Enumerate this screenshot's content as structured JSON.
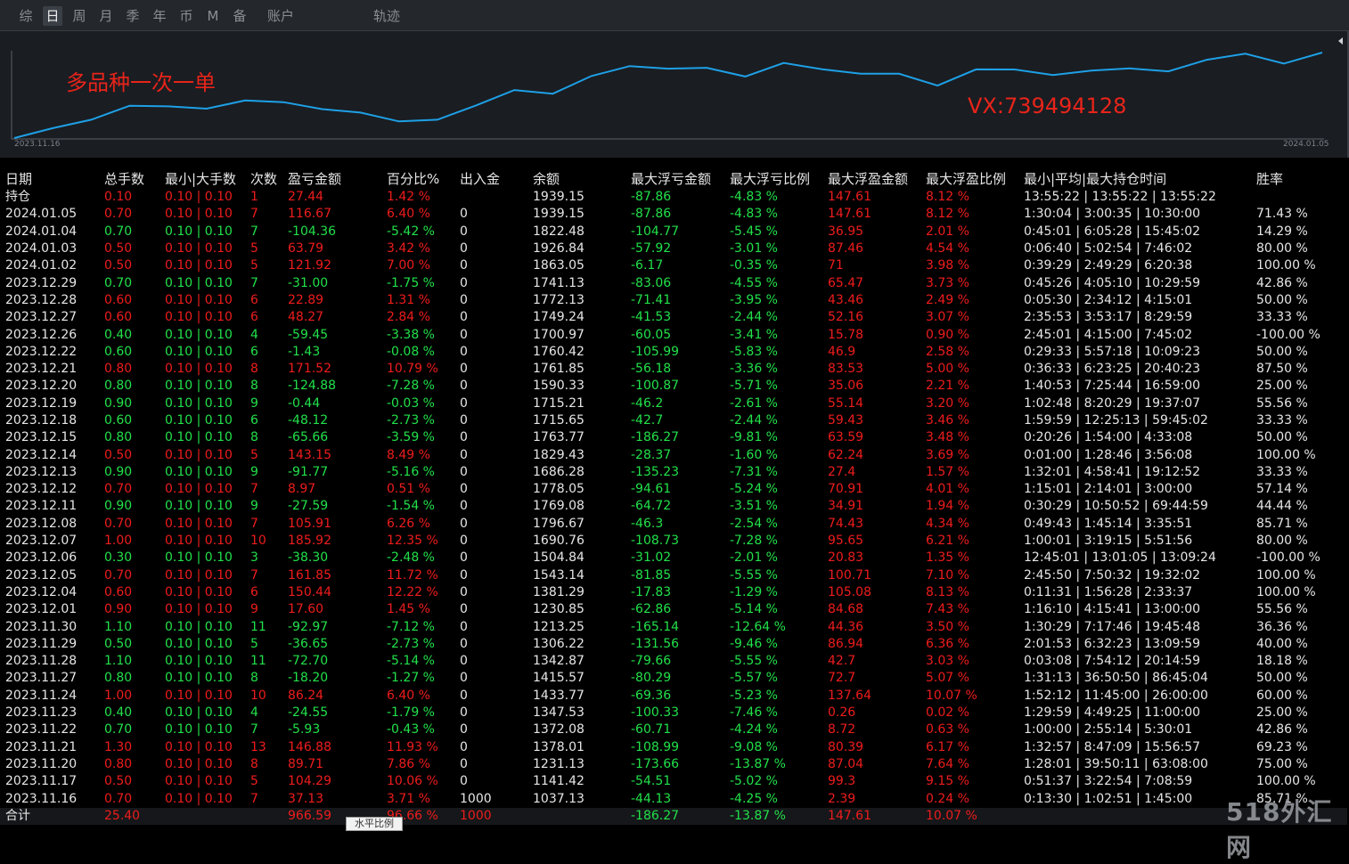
{
  "tabs": [
    {
      "label": "综",
      "active": false
    },
    {
      "label": "日",
      "active": true
    },
    {
      "label": "周",
      "active": false
    },
    {
      "label": "月",
      "active": false
    },
    {
      "label": "季",
      "active": false
    },
    {
      "label": "年",
      "active": false
    },
    {
      "label": "币",
      "active": false
    },
    {
      "label": "M",
      "active": false
    },
    {
      "label": "备",
      "active": false
    },
    {
      "label": "账户",
      "active": false
    },
    {
      "label": "轨迹",
      "active": false
    }
  ],
  "chart": {
    "title_overlay": "多品种一次一单",
    "note_overlay": "VX:739494128",
    "start_date": "2023.11.16",
    "end_date": "2024.01.05",
    "line_color": "#1ea0e6"
  },
  "chart_data": {
    "type": "line",
    "series_values": [
      1037.13,
      1141.42,
      1231.13,
      1378.01,
      1372.08,
      1347.53,
      1433.77,
      1415.57,
      1342.87,
      1306.22,
      1213.25,
      1230.85,
      1381.29,
      1543.14,
      1504.84,
      1690.76,
      1796.67,
      1769.08,
      1778.05,
      1686.28,
      1829.43,
      1763.77,
      1715.65,
      1715.21,
      1590.33,
      1761.85,
      1760.42,
      1700.97,
      1749.24,
      1772.13,
      1741.13,
      1863.05,
      1926.84,
      1822.48,
      1939.15
    ],
    "x_start": "2023.11.16",
    "x_end": "2024.01.05",
    "color": "#1ea0e6"
  },
  "table": {
    "headers": [
      "日期",
      "总手数",
      "最小|大手数",
      "次数",
      "盈亏金额",
      "百分比%",
      "出入金",
      "余额",
      "最大浮亏金额",
      "最大浮亏比例",
      "最大浮盈金额",
      "最大浮盈比例",
      "最小|平均|最大持仓时间",
      "胜率"
    ],
    "rows": [
      {
        "c": [
          "持仓",
          "0.10",
          "0.10 | 0.10",
          "1",
          "27.44",
          "1.42 %",
          "",
          "1939.15",
          "-87.86",
          "-4.83 %",
          "147.61",
          "8.12 %",
          "13:55:22 | 13:55:22 | 13:55:22",
          ""
        ],
        "s": "r"
      },
      {
        "c": [
          "2024.01.05",
          "0.70",
          "0.10 | 0.10",
          "7",
          "116.67",
          "6.40 %",
          "0",
          "1939.15",
          "-87.86",
          "-4.83 %",
          "147.61",
          "8.12 %",
          "1:30:04 | 3:00:35 | 10:30:00",
          "71.43 %"
        ],
        "s": "r"
      },
      {
        "c": [
          "2024.01.04",
          "0.70",
          "0.10 | 0.10",
          "7",
          "-104.36",
          "-5.42 %",
          "0",
          "1822.48",
          "-104.77",
          "-5.45 %",
          "36.95",
          "2.01 %",
          "0:45:01 | 6:05:28 | 15:45:02",
          "14.29 %"
        ],
        "s": "g"
      },
      {
        "c": [
          "2024.01.03",
          "0.50",
          "0.10 | 0.10",
          "5",
          "63.79",
          "3.42 %",
          "0",
          "1926.84",
          "-57.92",
          "-3.01 %",
          "87.46",
          "4.54 %",
          "0:06:40 | 5:02:54 | 7:46:02",
          "80.00 %"
        ],
        "s": "r"
      },
      {
        "c": [
          "2024.01.02",
          "0.50",
          "0.10 | 0.10",
          "5",
          "121.92",
          "7.00 %",
          "0",
          "1863.05",
          "-6.17",
          "-0.35 %",
          "71",
          "3.98 %",
          "0:39:29 | 2:49:29 | 6:20:38",
          "100.00 %"
        ],
        "s": "r"
      },
      {
        "c": [
          "2023.12.29",
          "0.70",
          "0.10 | 0.10",
          "7",
          "-31.00",
          "-1.75 %",
          "0",
          "1741.13",
          "-83.06",
          "-4.55 %",
          "65.47",
          "3.73 %",
          "0:45:26 | 4:05:10 | 10:29:59",
          "42.86 %"
        ],
        "s": "g"
      },
      {
        "c": [
          "2023.12.28",
          "0.60",
          "0.10 | 0.10",
          "6",
          "22.89",
          "1.31 %",
          "0",
          "1772.13",
          "-71.41",
          "-3.95 %",
          "43.46",
          "2.49 %",
          "0:05:30 | 2:34:12 | 4:15:01",
          "50.00 %"
        ],
        "s": "r"
      },
      {
        "c": [
          "2023.12.27",
          "0.60",
          "0.10 | 0.10",
          "6",
          "48.27",
          "2.84 %",
          "0",
          "1749.24",
          "-41.53",
          "-2.44 %",
          "52.16",
          "3.07 %",
          "2:35:53 | 3:53:17 | 8:29:59",
          "33.33 %"
        ],
        "s": "r"
      },
      {
        "c": [
          "2023.12.26",
          "0.40",
          "0.10 | 0.10",
          "4",
          "-59.45",
          "-3.38 %",
          "0",
          "1700.97",
          "-60.05",
          "-3.41 %",
          "15.78",
          "0.90 %",
          "2:45:01 | 4:15:00 | 7:45:02",
          "-100.00 %"
        ],
        "s": "g"
      },
      {
        "c": [
          "2023.12.22",
          "0.60",
          "0.10 | 0.10",
          "6",
          "-1.43",
          "-0.08 %",
          "0",
          "1760.42",
          "-105.99",
          "-5.83 %",
          "46.9",
          "2.58 %",
          "0:29:33 | 5:57:18 | 10:09:23",
          "50.00 %"
        ],
        "s": "g"
      },
      {
        "c": [
          "2023.12.21",
          "0.80",
          "0.10 | 0.10",
          "8",
          "171.52",
          "10.79 %",
          "0",
          "1761.85",
          "-56.18",
          "-3.36 %",
          "83.53",
          "5.00 %",
          "0:36:33 | 6:23:25 | 20:40:23",
          "87.50 %"
        ],
        "s": "r"
      },
      {
        "c": [
          "2023.12.20",
          "0.80",
          "0.10 | 0.10",
          "8",
          "-124.88",
          "-7.28 %",
          "0",
          "1590.33",
          "-100.87",
          "-5.71 %",
          "35.06",
          "2.21 %",
          "1:40:53 | 7:25:44 | 16:59:00",
          "25.00 %"
        ],
        "s": "g"
      },
      {
        "c": [
          "2023.12.19",
          "0.90",
          "0.10 | 0.10",
          "9",
          "-0.44",
          "-0.03 %",
          "0",
          "1715.21",
          "-46.2",
          "-2.61 %",
          "55.14",
          "3.20 %",
          "1:02:48 | 8:20:29 | 19:37:07",
          "55.56 %"
        ],
        "s": "g"
      },
      {
        "c": [
          "2023.12.18",
          "0.60",
          "0.10 | 0.10",
          "6",
          "-48.12",
          "-2.73 %",
          "0",
          "1715.65",
          "-42.7",
          "-2.44 %",
          "59.43",
          "3.46 %",
          "1:59:59 | 12:25:13 | 59:45:02",
          "33.33 %"
        ],
        "s": "g"
      },
      {
        "c": [
          "2023.12.15",
          "0.80",
          "0.10 | 0.10",
          "8",
          "-65.66",
          "-3.59 %",
          "0",
          "1763.77",
          "-186.27",
          "-9.81 %",
          "63.59",
          "3.48 %",
          "0:20:26 | 1:54:00 | 4:33:08",
          "50.00 %"
        ],
        "s": "g"
      },
      {
        "c": [
          "2023.12.14",
          "0.50",
          "0.10 | 0.10",
          "5",
          "143.15",
          "8.49 %",
          "0",
          "1829.43",
          "-28.37",
          "-1.60 %",
          "62.24",
          "3.69 %",
          "0:01:00 | 1:28:46 | 3:56:08",
          "100.00 %"
        ],
        "s": "r"
      },
      {
        "c": [
          "2023.12.13",
          "0.90",
          "0.10 | 0.10",
          "9",
          "-91.77",
          "-5.16 %",
          "0",
          "1686.28",
          "-135.23",
          "-7.31 %",
          "27.4",
          "1.57 %",
          "1:32:01 | 4:58:41 | 19:12:52",
          "33.33 %"
        ],
        "s": "g"
      },
      {
        "c": [
          "2023.12.12",
          "0.70",
          "0.10 | 0.10",
          "7",
          "8.97",
          "0.51 %",
          "0",
          "1778.05",
          "-94.61",
          "-5.24 %",
          "70.91",
          "4.01 %",
          "1:15:01 | 2:14:01 | 3:00:00",
          "57.14 %"
        ],
        "s": "r"
      },
      {
        "c": [
          "2023.12.11",
          "0.90",
          "0.10 | 0.10",
          "9",
          "-27.59",
          "-1.54 %",
          "0",
          "1769.08",
          "-64.72",
          "-3.51 %",
          "34.91",
          "1.94 %",
          "0:30:29 | 10:50:52 | 69:44:59",
          "44.44 %"
        ],
        "s": "g"
      },
      {
        "c": [
          "2023.12.08",
          "0.70",
          "0.10 | 0.10",
          "7",
          "105.91",
          "6.26 %",
          "0",
          "1796.67",
          "-46.3",
          "-2.54 %",
          "74.43",
          "4.34 %",
          "0:49:43 | 1:45:14 | 3:35:51",
          "85.71 %"
        ],
        "s": "r"
      },
      {
        "c": [
          "2023.12.07",
          "1.00",
          "0.10 | 0.10",
          "10",
          "185.92",
          "12.35 %",
          "0",
          "1690.76",
          "-108.73",
          "-7.28 %",
          "95.65",
          "6.21 %",
          "1:00:01 | 3:19:15 | 5:51:56",
          "80.00 %"
        ],
        "s": "r"
      },
      {
        "c": [
          "2023.12.06",
          "0.30",
          "0.10 | 0.10",
          "3",
          "-38.30",
          "-2.48 %",
          "0",
          "1504.84",
          "-31.02",
          "-2.01 %",
          "20.83",
          "1.35 %",
          "12:45:01 | 13:01:05 | 13:09:24",
          "-100.00 %"
        ],
        "s": "g"
      },
      {
        "c": [
          "2023.12.05",
          "0.70",
          "0.10 | 0.10",
          "7",
          "161.85",
          "11.72 %",
          "0",
          "1543.14",
          "-81.85",
          "-5.55 %",
          "100.71",
          "7.10 %",
          "2:45:50 | 7:50:32 | 19:32:02",
          "100.00 %"
        ],
        "s": "r"
      },
      {
        "c": [
          "2023.12.04",
          "0.60",
          "0.10 | 0.10",
          "6",
          "150.44",
          "12.22 %",
          "0",
          "1381.29",
          "-17.83",
          "-1.29 %",
          "105.08",
          "8.13 %",
          "0:11:31 | 1:56:28 | 2:33:37",
          "100.00 %"
        ],
        "s": "r"
      },
      {
        "c": [
          "2023.12.01",
          "0.90",
          "0.10 | 0.10",
          "9",
          "17.60",
          "1.45 %",
          "0",
          "1230.85",
          "-62.86",
          "-5.14 %",
          "84.68",
          "7.43 %",
          "1:16:10 | 4:15:41 | 13:00:00",
          "55.56 %"
        ],
        "s": "r"
      },
      {
        "c": [
          "2023.11.30",
          "1.10",
          "0.10 | 0.10",
          "11",
          "-92.97",
          "-7.12 %",
          "0",
          "1213.25",
          "-165.14",
          "-12.64 %",
          "44.36",
          "3.50 %",
          "1:30:29 | 7:17:46 | 19:45:48",
          "36.36 %"
        ],
        "s": "g"
      },
      {
        "c": [
          "2023.11.29",
          "0.50",
          "0.10 | 0.10",
          "5",
          "-36.65",
          "-2.73 %",
          "0",
          "1306.22",
          "-131.56",
          "-9.46 %",
          "86.94",
          "6.36 %",
          "2:01:53 | 6:32:23 | 13:09:59",
          "40.00 %"
        ],
        "s": "g"
      },
      {
        "c": [
          "2023.11.28",
          "1.10",
          "0.10 | 0.10",
          "11",
          "-72.70",
          "-5.14 %",
          "0",
          "1342.87",
          "-79.66",
          "-5.55 %",
          "42.7",
          "3.03 %",
          "0:03:08 | 7:54:12 | 20:14:59",
          "18.18 %"
        ],
        "s": "g"
      },
      {
        "c": [
          "2023.11.27",
          "0.80",
          "0.10 | 0.10",
          "8",
          "-18.20",
          "-1.27 %",
          "0",
          "1415.57",
          "-80.29",
          "-5.57 %",
          "72.7",
          "5.07 %",
          "1:31:13 | 36:50:50 | 86:45:04",
          "50.00 %"
        ],
        "s": "g"
      },
      {
        "c": [
          "2023.11.24",
          "1.00",
          "0.10 | 0.10",
          "10",
          "86.24",
          "6.40 %",
          "0",
          "1433.77",
          "-69.36",
          "-5.23 %",
          "137.64",
          "10.07 %",
          "1:52:12 | 11:45:00 | 26:00:00",
          "60.00 %"
        ],
        "s": "r"
      },
      {
        "c": [
          "2023.11.23",
          "0.40",
          "0.10 | 0.10",
          "4",
          "-24.55",
          "-1.79 %",
          "0",
          "1347.53",
          "-100.33",
          "-7.46 %",
          "0.26",
          "0.02 %",
          "1:29:59 | 4:49:25 | 11:00:00",
          "25.00 %"
        ],
        "s": "g"
      },
      {
        "c": [
          "2023.11.22",
          "0.70",
          "0.10 | 0.10",
          "7",
          "-5.93",
          "-0.43 %",
          "0",
          "1372.08",
          "-60.71",
          "-4.24 %",
          "8.72",
          "0.63 %",
          "1:00:00 | 2:55:14 | 5:30:01",
          "42.86 %"
        ],
        "s": "g"
      },
      {
        "c": [
          "2023.11.21",
          "1.30",
          "0.10 | 0.10",
          "13",
          "146.88",
          "11.93 %",
          "0",
          "1378.01",
          "-108.99",
          "-9.08 %",
          "80.39",
          "6.17 %",
          "1:32:57 | 8:47:09 | 15:56:57",
          "69.23 %"
        ],
        "s": "r"
      },
      {
        "c": [
          "2023.11.20",
          "0.80",
          "0.10 | 0.10",
          "8",
          "89.71",
          "7.86 %",
          "0",
          "1231.13",
          "-173.66",
          "-13.87 %",
          "87.04",
          "7.64 %",
          "1:28:01 | 39:50:11 | 63:08:00",
          "75.00 %"
        ],
        "s": "r"
      },
      {
        "c": [
          "2023.11.17",
          "0.50",
          "0.10 | 0.10",
          "5",
          "104.29",
          "10.06 %",
          "0",
          "1141.42",
          "-54.51",
          "-5.02 %",
          "99.3",
          "9.15 %",
          "0:51:37 | 3:22:54 | 7:08:59",
          "100.00 %"
        ],
        "s": "r"
      },
      {
        "c": [
          "2023.11.16",
          "0.70",
          "0.10 | 0.10",
          "7",
          "37.13",
          "3.71 %",
          "1000",
          "1037.13",
          "-44.13",
          "-4.25 %",
          "2.39",
          "0.24 %",
          "0:13:30 | 1:02:51 | 1:45:00",
          "85.71 %"
        ],
        "s": "r"
      }
    ],
    "total": {
      "c": [
        "合计",
        "25.40",
        "",
        "",
        "966.59",
        "96.66 %",
        "1000",
        "",
        "-186.27",
        "-13.87 %",
        "147.61",
        "10.07 %",
        "",
        ""
      ]
    }
  },
  "tooltip_text": "水平比例",
  "watermark": "518外汇网",
  "colors": {
    "profit": "#ee1c1c",
    "loss": "#22e04a",
    "text": "#e6e6e6",
    "background": "#000000"
  }
}
